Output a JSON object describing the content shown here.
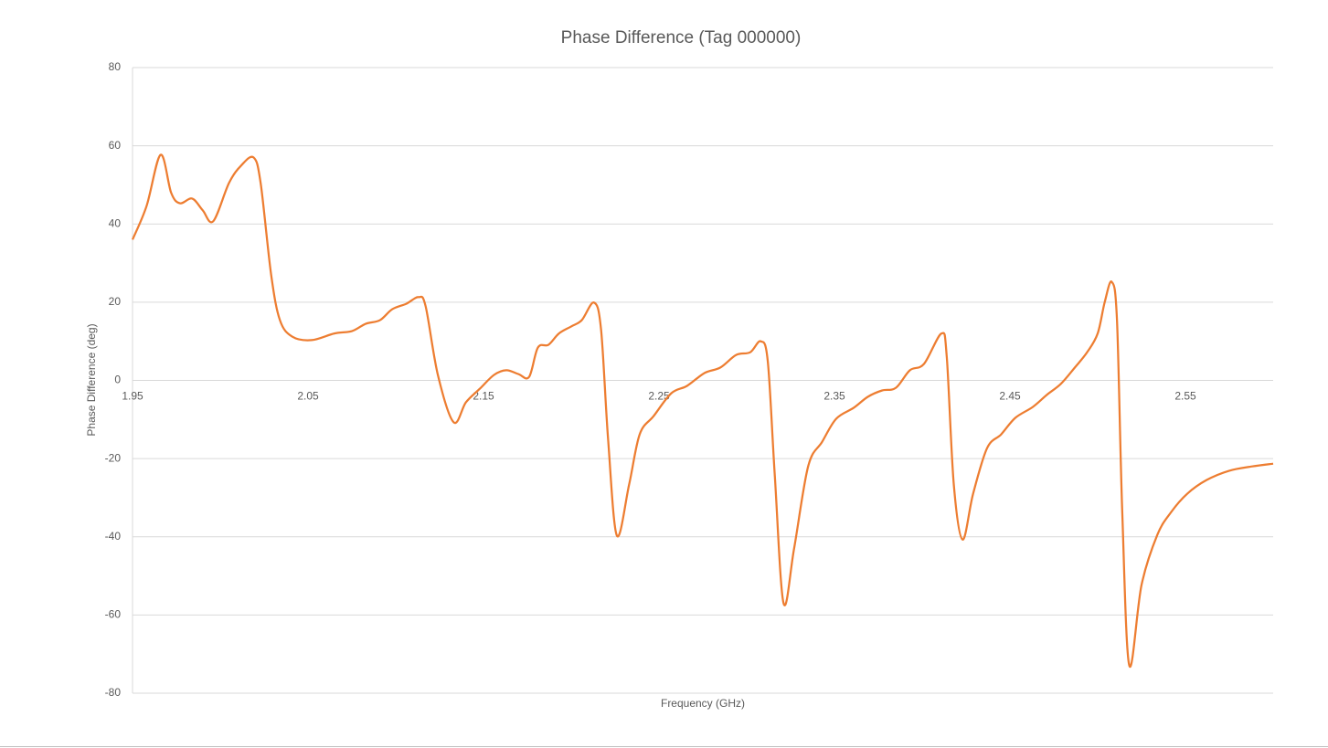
{
  "chart_data": {
    "type": "line",
    "title": "Phase Difference (Tag 000000)",
    "x_label": "Frequency (GHz)",
    "y_label": "Phase Difference (deg)",
    "xlim": [
      1.95,
      2.6
    ],
    "xticks": [
      1.95,
      2.05,
      2.15,
      2.25,
      2.35,
      2.45,
      2.55
    ],
    "ylim": [
      -80,
      80
    ],
    "yticks": [
      -80,
      -60,
      -40,
      -20,
      0,
      20,
      40,
      60,
      80
    ],
    "grid": true,
    "smooth": true,
    "x": [
      1.95,
      1.958,
      1.966,
      1.972,
      1.977,
      1.984,
      1.99,
      1.996,
      2.005,
      2.012,
      2.019,
      2.023,
      2.029,
      2.034,
      2.041,
      2.052,
      2.065,
      2.075,
      2.083,
      2.091,
      2.098,
      2.106,
      2.113,
      2.117,
      2.124,
      2.133,
      2.14,
      2.148,
      2.156,
      2.163,
      2.17,
      2.176,
      2.181,
      2.187,
      2.193,
      2.2,
      2.206,
      2.213,
      2.217,
      2.221,
      2.226,
      2.233,
      2.239,
      2.247,
      2.257,
      2.266,
      2.276,
      2.285,
      2.294,
      2.302,
      2.308,
      2.312,
      2.316,
      2.321,
      2.327,
      2.335,
      2.343,
      2.351,
      2.361,
      2.369,
      2.377,
      2.385,
      2.393,
      2.401,
      2.411,
      2.414,
      2.418,
      2.423,
      2.429,
      2.437,
      2.445,
      2.453,
      2.463,
      2.471,
      2.479,
      2.487,
      2.494,
      2.5,
      2.504,
      2.508,
      2.511,
      2.514,
      2.518,
      2.525,
      2.534,
      2.542,
      2.551,
      2.562,
      2.575,
      2.588,
      2.6
    ],
    "series": [
      {
        "name": "Phase Difference",
        "color": "#ed7d31",
        "values": [
          36,
          44.6,
          57.7,
          48,
          45.3,
          46.5,
          43.5,
          40.7,
          50.5,
          55,
          57,
          50.5,
          27,
          15.4,
          11.2,
          10.3,
          12,
          12.6,
          14.5,
          15.4,
          18.2,
          19.6,
          21.3,
          19,
          1.4,
          -10.7,
          -5.6,
          -2.1,
          1.4,
          2.6,
          1.6,
          0.9,
          8.4,
          9.1,
          12,
          13.8,
          15.4,
          19.9,
          13,
          -15,
          -39.7,
          -26.6,
          -13.8,
          -9.1,
          -3.3,
          -1.4,
          1.9,
          3.3,
          6.5,
          7.2,
          10,
          4.9,
          -24.3,
          -57,
          -43,
          -22,
          -15.7,
          -9.8,
          -7,
          -4.2,
          -2.6,
          -1.9,
          2.6,
          4.2,
          12,
          6,
          -26.6,
          -40.7,
          -29,
          -17.3,
          -13.8,
          -9.6,
          -6.8,
          -3.7,
          -0.9,
          3.3,
          7.2,
          12,
          20,
          25.2,
          15.4,
          -33.6,
          -72.9,
          -52.3,
          -39.5,
          -33.6,
          -29,
          -25.5,
          -23.1,
          -22,
          -21.3
        ]
      }
    ]
  }
}
